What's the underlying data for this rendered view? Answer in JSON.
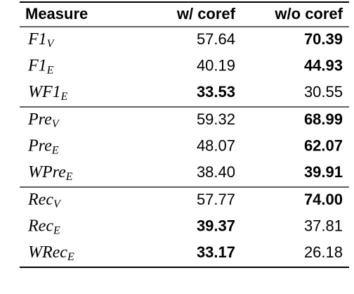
{
  "table": {
    "header": [
      "Measure",
      "w/ coref",
      "w/o coref"
    ],
    "groups": [
      [
        {
          "measure": {
            "base": "F1",
            "sub": "V"
          },
          "cells": [
            "57.64",
            "70.39"
          ],
          "bold": 1
        },
        {
          "measure": {
            "base": "F1",
            "sub": "E"
          },
          "cells": [
            "40.19",
            "44.93"
          ],
          "bold": 1
        },
        {
          "measure": {
            "base": "WF1",
            "sub": "E"
          },
          "cells": [
            "33.53",
            "30.55"
          ],
          "bold": 0
        }
      ],
      [
        {
          "measure": {
            "base": "Pre",
            "sub": "V"
          },
          "cells": [
            "59.32",
            "68.99"
          ],
          "bold": 1
        },
        {
          "measure": {
            "base": "Pre",
            "sub": "E"
          },
          "cells": [
            "48.07",
            "62.07"
          ],
          "bold": 1
        },
        {
          "measure": {
            "base": "WPre",
            "sub": "E"
          },
          "cells": [
            "38.40",
            "39.91"
          ],
          "bold": 1
        }
      ],
      [
        {
          "measure": {
            "base": "Rec",
            "sub": "V"
          },
          "cells": [
            "57.77",
            "74.00"
          ],
          "bold": 1
        },
        {
          "measure": {
            "base": "Rec",
            "sub": "E"
          },
          "cells": [
            "39.37",
            "37.81"
          ],
          "bold": 0
        },
        {
          "measure": {
            "base": "WRec",
            "sub": "E"
          },
          "cells": [
            "33.17",
            "26.18"
          ],
          "bold": 0
        }
      ]
    ]
  }
}
